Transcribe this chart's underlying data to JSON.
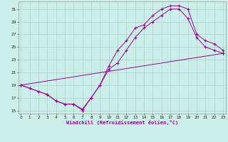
{
  "bg_color": "#cceee8",
  "grid_color": "#aad4cc",
  "line_color": "#990099",
  "xlim": [
    -0.3,
    23.3
  ],
  "ylim": [
    14.5,
    32.2
  ],
  "xticks": [
    0,
    1,
    2,
    3,
    4,
    5,
    6,
    7,
    8,
    9,
    10,
    11,
    12,
    13,
    14,
    15,
    16,
    17,
    18,
    19,
    20,
    21,
    22,
    23
  ],
  "yticks": [
    15,
    17,
    19,
    21,
    23,
    25,
    27,
    29,
    31
  ],
  "line1_x": [
    0,
    1,
    2,
    3,
    4,
    5,
    6,
    7,
    8,
    9,
    10,
    11,
    12,
    13,
    14,
    15,
    16,
    17,
    18,
    19,
    20,
    21,
    22,
    23
  ],
  "line1_y": [
    19,
    18.5,
    18,
    17.5,
    16.5,
    16,
    16,
    15,
    17,
    19,
    22,
    24.5,
    26,
    28,
    28.5,
    30,
    31,
    31.5,
    31.5,
    31,
    27,
    26,
    25.5,
    24.5
  ],
  "line2_x": [
    0,
    1,
    2,
    3,
    4,
    5,
    6,
    7,
    8,
    9,
    10,
    11,
    12,
    13,
    14,
    15,
    16,
    17,
    18,
    19,
    20,
    21,
    22,
    23
  ],
  "line2_y": [
    19,
    18.5,
    18,
    17.5,
    16.5,
    16,
    16,
    15.2,
    17,
    19,
    21.5,
    22.5,
    24.5,
    26.5,
    28,
    29,
    30,
    31,
    31,
    29.5,
    26.5,
    25,
    24.5,
    24
  ],
  "line3_x": [
    0,
    23
  ],
  "line3_y": [
    19,
    24
  ],
  "xlabel": "Windchill (Refroidissement éolien,°C)"
}
